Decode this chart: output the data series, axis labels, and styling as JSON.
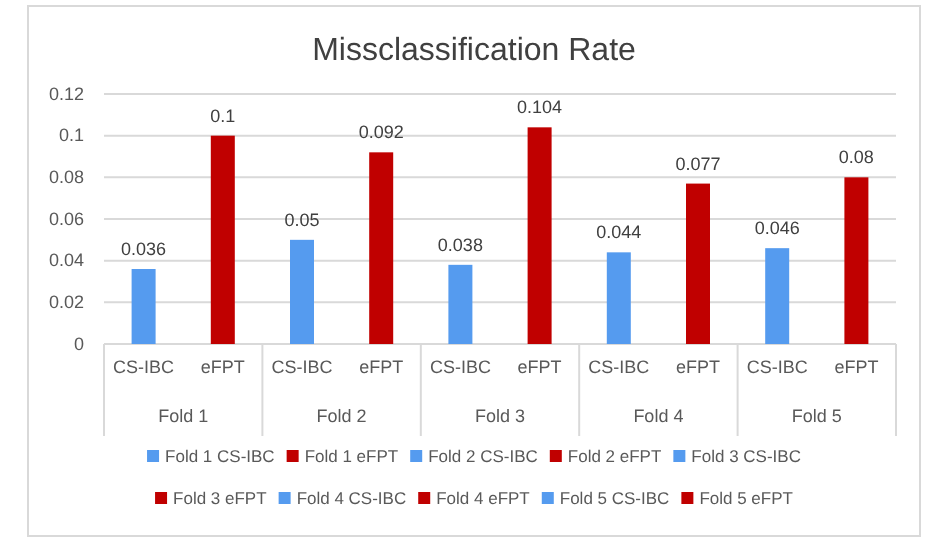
{
  "chart_data": {
    "type": "bar",
    "title": "Missclassification Rate",
    "categories": [
      "CS-IBC",
      "eFPT",
      "CS-IBC",
      "eFPT",
      "CS-IBC",
      "eFPT",
      "CS-IBC",
      "eFPT",
      "CS-IBC",
      "eFPT"
    ],
    "annotations": [
      "Fold 1",
      "Fold 2",
      "Fold 3",
      "Fold 4",
      "Fold 5"
    ],
    "series": [
      {
        "name": "Fold 1 CS-IBC",
        "color": "#559bef",
        "values": [
          0.036,
          null,
          null,
          null,
          null,
          null,
          null,
          null,
          null,
          null
        ]
      },
      {
        "name": "Fold 1 eFPT",
        "color": "#c00000",
        "values": [
          null,
          0.1,
          null,
          null,
          null,
          null,
          null,
          null,
          null,
          null
        ]
      },
      {
        "name": "Fold 2 CS-IBC",
        "color": "#559bef",
        "values": [
          null,
          null,
          0.05,
          null,
          null,
          null,
          null,
          null,
          null,
          null
        ]
      },
      {
        "name": "Fold 2 eFPT",
        "color": "#c00000",
        "values": [
          null,
          null,
          null,
          0.092,
          null,
          null,
          null,
          null,
          null,
          null
        ]
      },
      {
        "name": "Fold 3 CS-IBC",
        "color": "#559bef",
        "values": [
          null,
          null,
          null,
          null,
          0.038,
          null,
          null,
          null,
          null,
          null
        ]
      },
      {
        "name": "Fold 3 eFPT",
        "color": "#c00000",
        "values": [
          null,
          null,
          null,
          null,
          null,
          0.104,
          null,
          null,
          null,
          null
        ]
      },
      {
        "name": "Fold 4 CS-IBC",
        "color": "#559bef",
        "values": [
          null,
          null,
          null,
          null,
          null,
          null,
          0.044,
          null,
          null,
          null
        ]
      },
      {
        "name": "Fold 4 eFPT",
        "color": "#c00000",
        "values": [
          null,
          null,
          null,
          null,
          null,
          null,
          null,
          0.077,
          null,
          null
        ]
      },
      {
        "name": "Fold 5 CS-IBC",
        "color": "#559bef",
        "values": [
          null,
          null,
          null,
          null,
          null,
          null,
          null,
          null,
          0.046,
          null
        ]
      },
      {
        "name": "Fold 5 eFPT",
        "color": "#c00000",
        "values": [
          null,
          null,
          null,
          null,
          null,
          null,
          null,
          null,
          null,
          0.08
        ]
      }
    ],
    "ylim": [
      0,
      0.12
    ],
    "yticks": [
      0,
      0.02,
      0.04,
      0.06,
      0.08,
      0.1,
      0.12
    ],
    "grid": "y",
    "legend": "bottom",
    "data_labels": true
  }
}
